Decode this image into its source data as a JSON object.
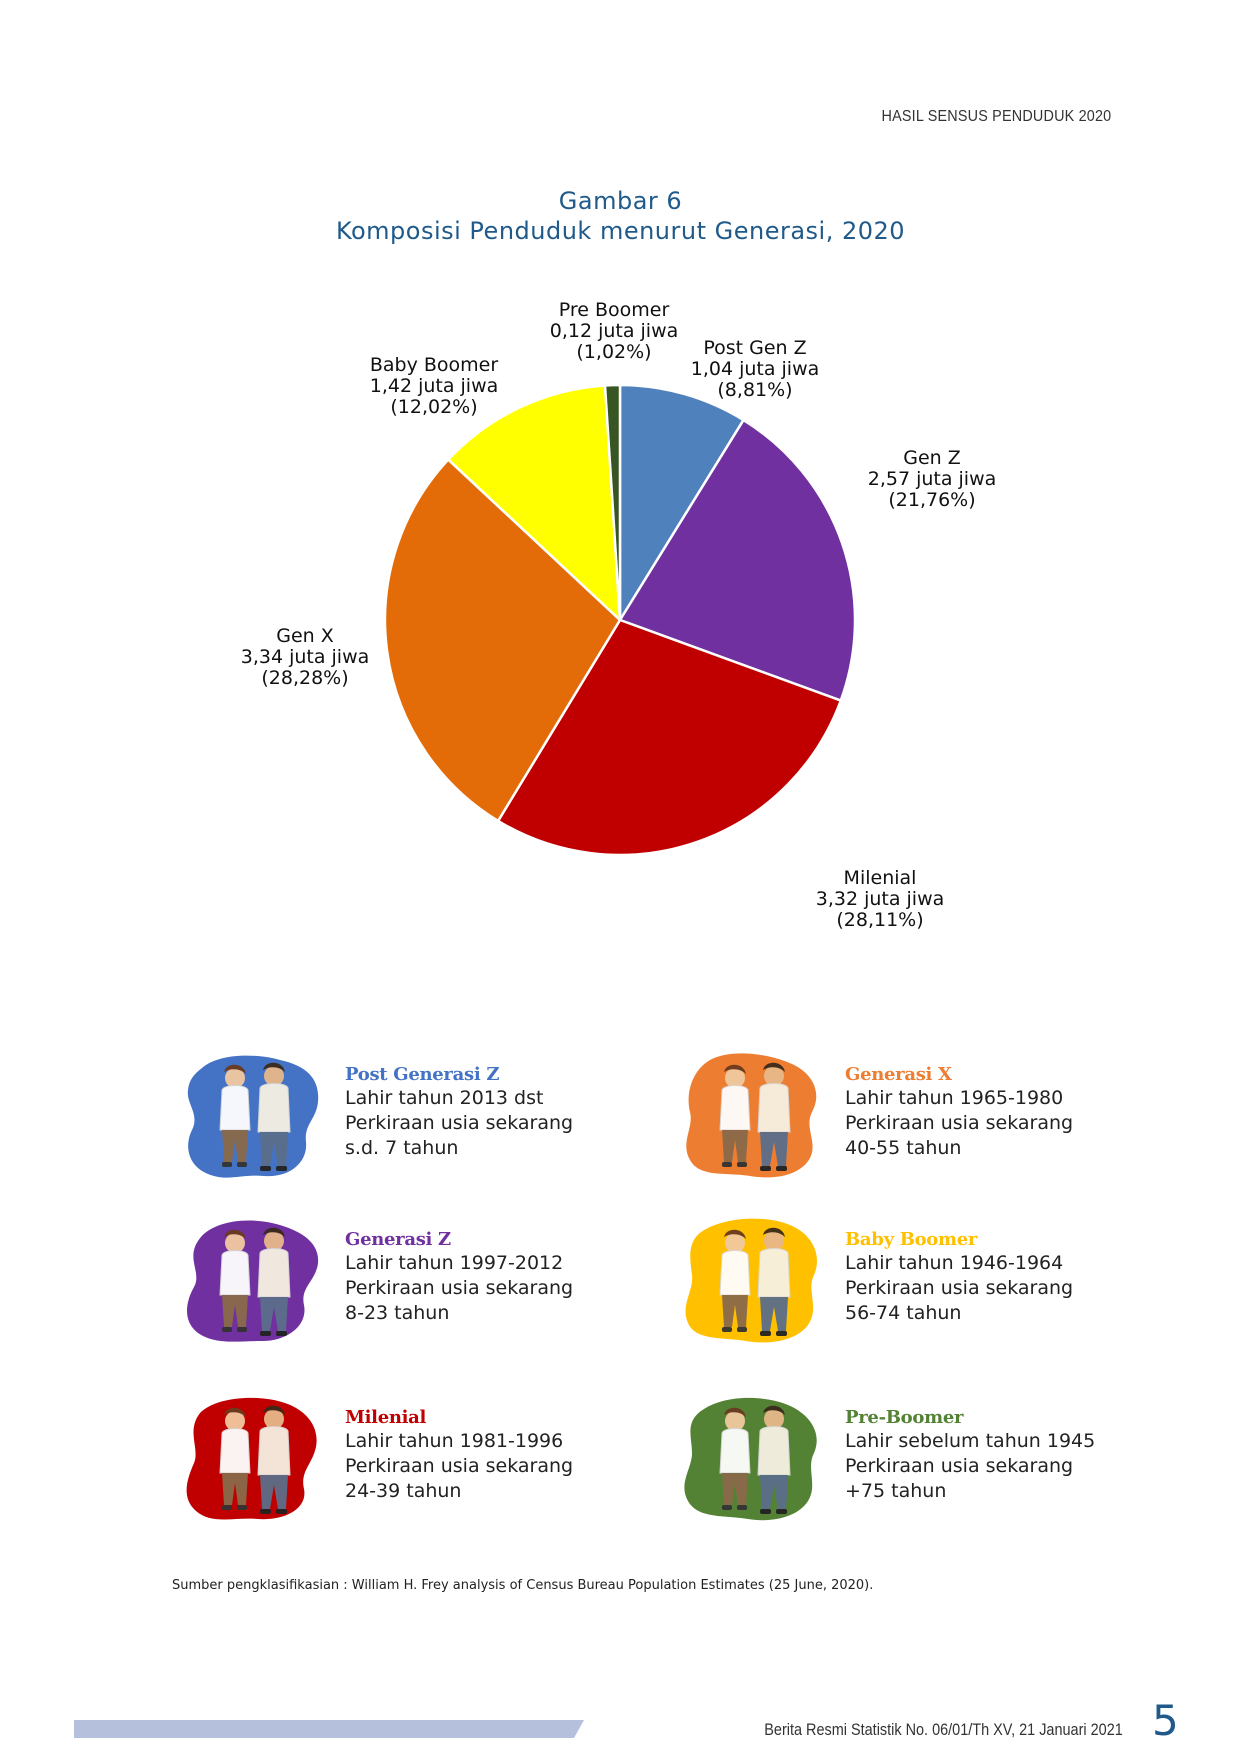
{
  "header": {
    "title": "HASIL SENSUS PENDUDUK 2020"
  },
  "figure": {
    "number": "Gambar 6",
    "title": "Komposisi Penduduk menurut Generasi, 2020"
  },
  "chart_data": {
    "type": "pie",
    "title": "Komposisi Penduduk menurut Generasi, 2020",
    "unit": "juta jiwa",
    "slices": [
      {
        "name": "Post Gen Z",
        "value": 1.04,
        "value_label": "1,04 juta jiwa",
        "percent": 8.81,
        "percent_label": "(8,81%)",
        "color": "#4f81bd"
      },
      {
        "name": "Gen Z",
        "value": 2.57,
        "value_label": "2,57 juta jiwa",
        "percent": 21.76,
        "percent_label": "(21,76%)",
        "color": "#7030a0"
      },
      {
        "name": "Milenial",
        "value": 3.32,
        "value_label": "3,32 juta jiwa",
        "percent": 28.11,
        "percent_label": "(28,11%)",
        "color": "#c00000"
      },
      {
        "name": "Gen X",
        "value": 3.34,
        "value_label": "3,34 juta jiwa",
        "percent": 28.28,
        "percent_label": "(28,28%)",
        "color": "#e36c09"
      },
      {
        "name": "Baby Boomer",
        "value": 1.42,
        "value_label": "1,42 juta jiwa",
        "percent": 12.02,
        "percent_label": "(12,02%)",
        "color": "#ffff00"
      },
      {
        "name": "Pre Boomer",
        "value": 0.12,
        "value_label": "0,12 juta jiwa",
        "percent": 1.02,
        "percent_label": "(1,02%)",
        "color": "#375623"
      }
    ]
  },
  "legend": [
    {
      "title": "Post Generasi Z",
      "color": "#4472c4",
      "bg_color": "#4472c4",
      "lines": [
        "Lahir tahun 2013 dst",
        "Perkiraan usia sekarang",
        "s.d. 7 tahun"
      ],
      "illustration": "children-playing-icon"
    },
    {
      "title": "Generasi X",
      "color": "#ed7d31",
      "bg_color": "#ed7d31",
      "lines": [
        "Lahir tahun 1965-1980",
        "Perkiraan usia sekarang",
        "40-55 tahun"
      ],
      "illustration": "adult-couple-icon"
    },
    {
      "title": "Generasi Z",
      "color": "#7030a0",
      "bg_color": "#7030a0",
      "lines": [
        "Lahir tahun 1997-2012",
        "Perkiraan usia sekarang",
        "8-23 tahun"
      ],
      "illustration": "students-icon"
    },
    {
      "title": "Baby Boomer",
      "color": "#ffc000",
      "bg_color": "#ffc000",
      "lines": [
        "Lahir tahun 1946-1964",
        "Perkiraan usia sekarang",
        "56-74 tahun"
      ],
      "illustration": "business-couple-icon"
    },
    {
      "title": "Milenial",
      "color": "#c00000",
      "bg_color": "#c00000",
      "lines": [
        "Lahir tahun 1981-1996",
        "Perkiraan usia sekarang",
        "24-39 tahun"
      ],
      "illustration": "young-couple-icon"
    },
    {
      "title": "Pre-Boomer",
      "color": "#548235",
      "bg_color": "#548235",
      "lines": [
        "Lahir sebelum tahun 1945",
        "Perkiraan usia sekarang",
        "+75 tahun"
      ],
      "illustration": "elderly-wheelchair-icon"
    }
  ],
  "source": "Sumber pengklasifikasian : William H. Frey analysis of Census Bureau Population Estimates (25 June, 2020).",
  "footer": {
    "text": "Berita Resmi Statistik No. 06/01/Th XV, 21 Januari 2021",
    "page_number": "5",
    "bar_color": "#b4c0dc"
  }
}
